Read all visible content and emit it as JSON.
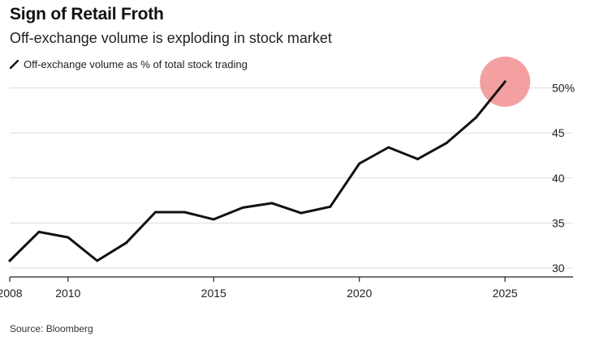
{
  "chart_data": {
    "type": "line",
    "title": "Sign of Retail Froth",
    "subtitle": "Off-exchange volume is exploding in stock market",
    "series": [
      {
        "name": "Off-exchange volume as % of total stock trading",
        "x": [
          2008,
          2009,
          2010,
          2011,
          2012,
          2013,
          2014,
          2015,
          2016,
          2017,
          2018,
          2019,
          2020,
          2021,
          2022,
          2023,
          2024,
          2025
        ],
        "values": [
          30.8,
          34.0,
          33.4,
          30.8,
          32.8,
          36.2,
          36.2,
          35.4,
          36.7,
          37.2,
          36.1,
          36.8,
          41.6,
          43.4,
          42.1,
          43.9,
          46.7,
          50.7
        ]
      }
    ],
    "xlabel": "",
    "ylabel": "",
    "xlim": [
      2008,
      2026.5
    ],
    "ylim": [
      29,
      51.5
    ],
    "x_ticks": [
      {
        "value": 2008,
        "label": "2008"
      },
      {
        "value": 2010,
        "label": "2010"
      },
      {
        "value": 2015,
        "label": "2015"
      },
      {
        "value": 2020,
        "label": "2020"
      },
      {
        "value": 2025,
        "label": "2025"
      }
    ],
    "y_ticks": [
      {
        "value": 30,
        "label": "30"
      },
      {
        "value": 35,
        "label": "35"
      },
      {
        "value": 40,
        "label": "40"
      },
      {
        "value": 45,
        "label": "45"
      },
      {
        "value": 50,
        "label": "50%"
      }
    ],
    "grid": true,
    "highlight": {
      "x": 2025,
      "value": 50.7
    },
    "source": "Source: Bloomberg",
    "colors": {
      "line": "#111111",
      "grid": "#dddddd",
      "axis": "#222222",
      "highlight": "#f08080"
    }
  }
}
